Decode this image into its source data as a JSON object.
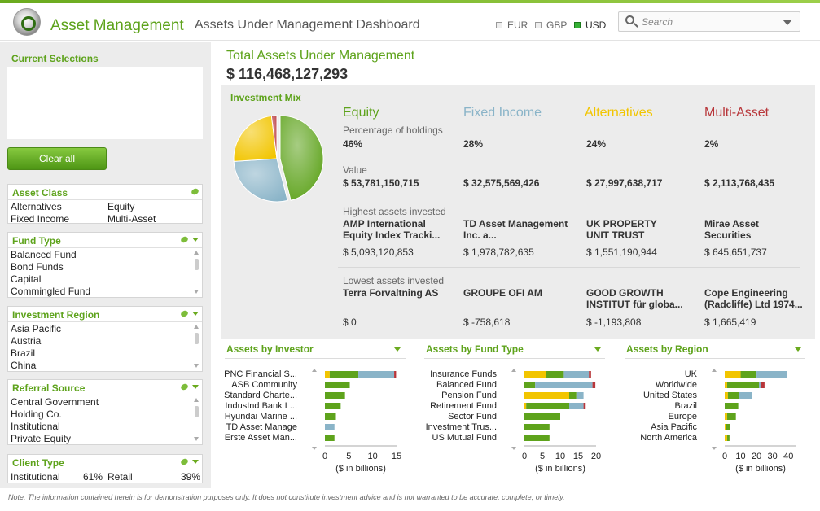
{
  "header": {
    "app_title": "Asset Management",
    "page_title": "Assets Under Management Dashboard",
    "currencies": [
      {
        "label": "EUR",
        "active": false
      },
      {
        "label": "GBP",
        "active": false
      },
      {
        "label": "USD",
        "active": true
      }
    ],
    "search_placeholder": "Search"
  },
  "left": {
    "current_selections_title": "Current Selections",
    "clear_all_label": "Clear all",
    "asset_class": {
      "title": "Asset Class",
      "items": [
        "Alternatives",
        "Equity",
        "Fixed Income",
        "Multi-Asset"
      ]
    },
    "fund_type": {
      "title": "Fund Type",
      "items": [
        "Balanced Fund",
        "Bond Funds",
        "Capital",
        "Commingled Fund"
      ]
    },
    "investment_region": {
      "title": "Investment Region",
      "items": [
        "Asia Pacific",
        "Austria",
        "Brazil",
        "China"
      ]
    },
    "referral_source": {
      "title": "Referral Source",
      "items": [
        "Central Government",
        "Holding Co.",
        "Institutional",
        "Private Equity"
      ]
    },
    "client_type": {
      "title": "Client Type",
      "items": [
        {
          "label": "Institutional",
          "pct": "61%"
        },
        {
          "label": "Retail",
          "pct": "39%"
        }
      ]
    }
  },
  "total": {
    "label": "Total Assets Under Management",
    "value": "$ 116,468,127,293"
  },
  "mix": {
    "title": "Investment Mix",
    "labels": {
      "pct": "Percentage of holdings",
      "value": "Value",
      "highest": "Highest assets invested",
      "lowest": "Lowest assets invested"
    },
    "columns": [
      {
        "name": "Equity",
        "color": "#5ea31c",
        "pct": "46%",
        "pct_num": 46,
        "value": "$ 53,781,150,715",
        "highest_name": "AMP International Equity  Index Tracki...",
        "highest_amt": "$ 5,093,120,853",
        "lowest_name": "Terra Forvaltning AS",
        "lowest_amt": "$ 0"
      },
      {
        "name": "Fixed Income",
        "color": "#8ab4c8",
        "pct": "28%",
        "pct_num": 28,
        "value": "$ 32,575,569,426",
        "highest_name": "TD Asset Management Inc. a...",
        "highest_amt": "$ 1,978,782,635",
        "lowest_name": "GROUPE OFI AM",
        "lowest_amt": "$ -758,618"
      },
      {
        "name": "Alternatives",
        "color": "#f2c500",
        "pct": "24%",
        "pct_num": 24,
        "value": "$ 27,997,638,717",
        "highest_name": "UK PROPERTY UNIT TRUST",
        "highest_amt": "$ 1,551,190,944",
        "lowest_name": "GOOD GROWTH INSTITUT für globa...",
        "lowest_amt": "$ -1,193,808"
      },
      {
        "name": "Multi-Asset",
        "color": "#b8363a",
        "pct": "2%",
        "pct_num": 2,
        "value": "$ 2,113,768,435",
        "highest_name": "Mirae Asset Securities",
        "highest_amt": "$ 645,651,737",
        "lowest_name": "Cope Engineering (Radcliffe) Ltd 1974...",
        "lowest_amt": "$ 1,665,419"
      }
    ]
  },
  "chart_data": [
    {
      "type": "bar",
      "title": "Assets by Investor",
      "xlabel": "($ in billions)",
      "xticks": [
        0,
        5,
        10,
        15
      ],
      "xlim": [
        0,
        15
      ],
      "categories": [
        "PNC Financial S...",
        "ASB Community",
        "Standard Charte...",
        "IndusInd Bank L...",
        "Hyundai Marine ...",
        "TD Asset Manage",
        "Erste Asset Man..."
      ],
      "series": [
        {
          "color": "#f2c500",
          "values": [
            1.0,
            0,
            0,
            0,
            0,
            0,
            0
          ]
        },
        {
          "color": "#5ea31c",
          "values": [
            6.0,
            5.2,
            4.2,
            3.3,
            2.3,
            0,
            2.0
          ]
        },
        {
          "color": "#8ab4c8",
          "values": [
            7.5,
            0,
            0,
            0,
            0,
            2.0,
            0
          ]
        },
        {
          "color": "#b8363a",
          "values": [
            0.4,
            0,
            0,
            0,
            0,
            0,
            0
          ]
        }
      ]
    },
    {
      "type": "bar",
      "title": "Assets by Fund Type",
      "xlabel": "($ in billions)",
      "xticks": [
        0,
        5,
        10,
        15,
        20
      ],
      "xlim": [
        0,
        20
      ],
      "categories": [
        "Insurance Funds",
        "Balanced Fund",
        "Pension Fund",
        "Retirement Fund",
        "Sector Fund",
        "Investment Trus...",
        "US Mutual Fund"
      ],
      "series": [
        {
          "color": "#f2c500",
          "values": [
            6.0,
            0,
            12.5,
            0.5,
            0,
            0,
            0
          ]
        },
        {
          "color": "#5ea31c",
          "values": [
            5.0,
            3.0,
            2.0,
            12.0,
            10.0,
            7.0,
            7.0
          ]
        },
        {
          "color": "#8ab4c8",
          "values": [
            7.0,
            16.0,
            2.0,
            4.0,
            0,
            0,
            0
          ]
        },
        {
          "color": "#b8363a",
          "values": [
            0.6,
            0.8,
            0,
            0.6,
            0,
            0,
            0
          ]
        }
      ]
    },
    {
      "type": "bar",
      "title": "Assets by Region",
      "xlabel": "($ in billions)",
      "xticks": [
        0,
        10,
        20,
        30,
        40
      ],
      "xlim": [
        0,
        45
      ],
      "categories": [
        "UK",
        "Worldwide",
        "United States",
        "Brazil",
        "Europe",
        "Asia Pacific",
        "North America"
      ],
      "series": [
        {
          "color": "#f2c500",
          "values": [
            10.0,
            1.5,
            2.0,
            0,
            1.5,
            1.0,
            1.5
          ]
        },
        {
          "color": "#5ea31c",
          "values": [
            10.0,
            20.0,
            7.0,
            8.5,
            5.5,
            2.5,
            1.5
          ]
        },
        {
          "color": "#8ab4c8",
          "values": [
            19.0,
            1.5,
            8.0,
            0,
            0,
            0,
            0
          ]
        },
        {
          "color": "#b8363a",
          "values": [
            0,
            2.0,
            0,
            0,
            0,
            0,
            0
          ]
        }
      ]
    }
  ],
  "note": "Note: The information contained herein is for demonstration purposes only. It does not constitute investment advice and is not warranted to be accurate, complete, or timely."
}
